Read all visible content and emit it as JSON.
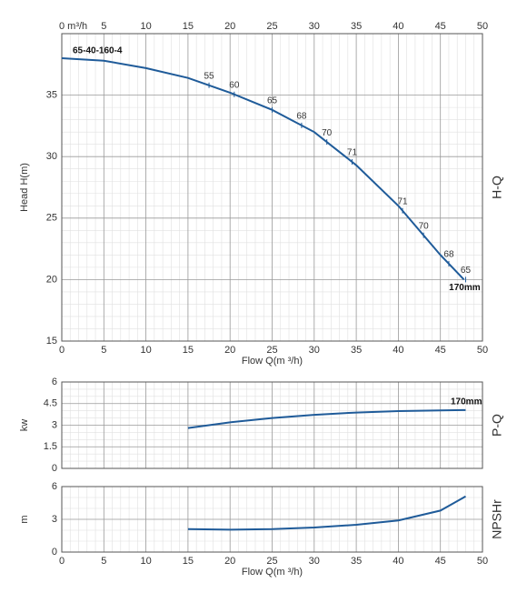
{
  "chart_data": [
    {
      "type": "line",
      "curve_label": "65-40-160-4",
      "end_label": "170mm",
      "side_label": "H-Q",
      "xlabel": "Flow Q(m ³/h)",
      "ylabel": "Head H(m)",
      "color": "#1f5b99",
      "grid": true,
      "xlim": [
        0,
        50
      ],
      "ylim": [
        15,
        40
      ],
      "xticks": [
        0,
        5,
        10,
        15,
        20,
        25,
        30,
        35,
        40,
        45,
        50
      ],
      "x2ticks": [
        {
          "value": 0,
          "label": "0 m³/h"
        },
        5,
        10,
        15,
        20,
        25,
        30,
        35,
        40,
        45,
        50
      ],
      "yticks": [
        15,
        20,
        25,
        30,
        35
      ],
      "x": [
        0,
        5,
        10,
        15,
        20,
        25,
        30,
        35,
        40,
        45,
        47.8
      ],
      "values": [
        38,
        37.8,
        37.2,
        36.4,
        35.2,
        33.8,
        32,
        29.3,
        26,
        22,
        20
      ],
      "efficiency": [
        {
          "x": 17.5,
          "value": 55
        },
        {
          "x": 20.5,
          "value": 60
        },
        {
          "x": 25,
          "value": 65
        },
        {
          "x": 28.5,
          "value": 68
        },
        {
          "x": 31.5,
          "value": 70
        },
        {
          "x": 34.5,
          "value": 71
        },
        {
          "x": 40.5,
          "value": 71
        },
        {
          "x": 43,
          "value": 70
        },
        {
          "x": 46,
          "value": 68
        },
        {
          "x": 48,
          "value": 65
        }
      ]
    },
    {
      "type": "line",
      "end_label": "170mm",
      "side_label": "P-Q",
      "ylabel": "kw",
      "color": "#1f5b99",
      "grid": true,
      "xlim": [
        0,
        50
      ],
      "ylim": [
        0,
        6
      ],
      "yticks": [
        0,
        1.5,
        3,
        4.5,
        6
      ],
      "x": [
        15,
        20,
        25,
        30,
        35,
        40,
        45,
        48
      ],
      "values": [
        2.8,
        3.2,
        3.5,
        3.72,
        3.88,
        3.98,
        4.03,
        4.05
      ]
    },
    {
      "type": "line",
      "side_label": "NPSHr",
      "ylabel": "m",
      "xlabel": "Flow Q(m ³/h)",
      "color": "#1f5b99",
      "grid": true,
      "xlim": [
        0,
        50
      ],
      "ylim": [
        0,
        6
      ],
      "yticks": [
        0,
        3,
        6
      ],
      "xticks": [
        0,
        5,
        10,
        15,
        20,
        25,
        30,
        35,
        40,
        45,
        50
      ],
      "x": [
        15,
        20,
        25,
        30,
        35,
        40,
        45,
        48
      ],
      "values": [
        2.1,
        2.05,
        2.1,
        2.25,
        2.5,
        2.9,
        3.8,
        5.1
      ]
    }
  ]
}
